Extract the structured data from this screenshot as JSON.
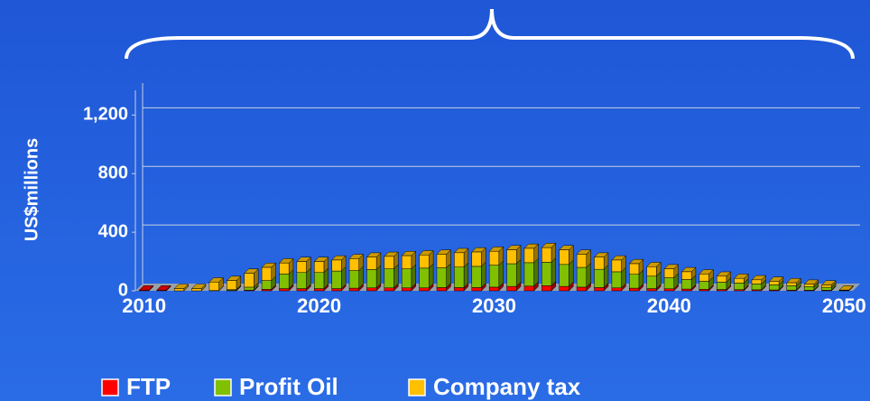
{
  "chart_data": {
    "type": "bar3d_stacked",
    "y_label": "US$millions",
    "x": [
      2010,
      2011,
      2012,
      2013,
      2014,
      2015,
      2016,
      2017,
      2018,
      2019,
      2020,
      2021,
      2022,
      2023,
      2024,
      2025,
      2026,
      2027,
      2028,
      2029,
      2030,
      2031,
      2032,
      2033,
      2034,
      2035,
      2036,
      2037,
      2038,
      2039,
      2040,
      2041,
      2042,
      2043,
      2044,
      2045,
      2046,
      2047,
      2048,
      2049,
      2050
    ],
    "xlim": [
      2009.5,
      2050.5
    ],
    "xticks": [
      2010,
      2020,
      2030,
      2040,
      2050
    ],
    "ylim": [
      0,
      1400
    ],
    "yticks": [
      0,
      400,
      800,
      {
        "value": 1200,
        "label": "1,200"
      }
    ],
    "grid": true,
    "series": [
      {
        "name": "FTP",
        "color": "#ff0000",
        "values": [
          5,
          5,
          0,
          0,
          2,
          3,
          5,
          10,
          15,
          15,
          15,
          15,
          18,
          20,
          20,
          20,
          20,
          22,
          22,
          22,
          25,
          30,
          32,
          35,
          30,
          25,
          22,
          20,
          18,
          15,
          14,
          12,
          10,
          9,
          8,
          7,
          6,
          5,
          4,
          4,
          2
        ]
      },
      {
        "name": "Profit Oil",
        "color": "#80c000",
        "values": [
          0,
          0,
          0,
          0,
          0,
          5,
          20,
          60,
          100,
          110,
          110,
          120,
          120,
          125,
          130,
          130,
          135,
          135,
          140,
          145,
          150,
          155,
          160,
          160,
          150,
          135,
          125,
          110,
          95,
          85,
          75,
          65,
          55,
          50,
          45,
          40,
          35,
          30,
          25,
          20,
          0
        ]
      },
      {
        "name": "Company tax",
        "color": "#ffc000",
        "values": [
          0,
          0,
          15,
          15,
          58,
          62,
          95,
          90,
          75,
          75,
          75,
          75,
          82,
          85,
          85,
          90,
          90,
          93,
          98,
          98,
          95,
          95,
          98,
          100,
          100,
          90,
          83,
          80,
          72,
          65,
          61,
          53,
          50,
          41,
          32,
          28,
          24,
          20,
          16,
          16,
          3
        ]
      }
    ]
  }
}
